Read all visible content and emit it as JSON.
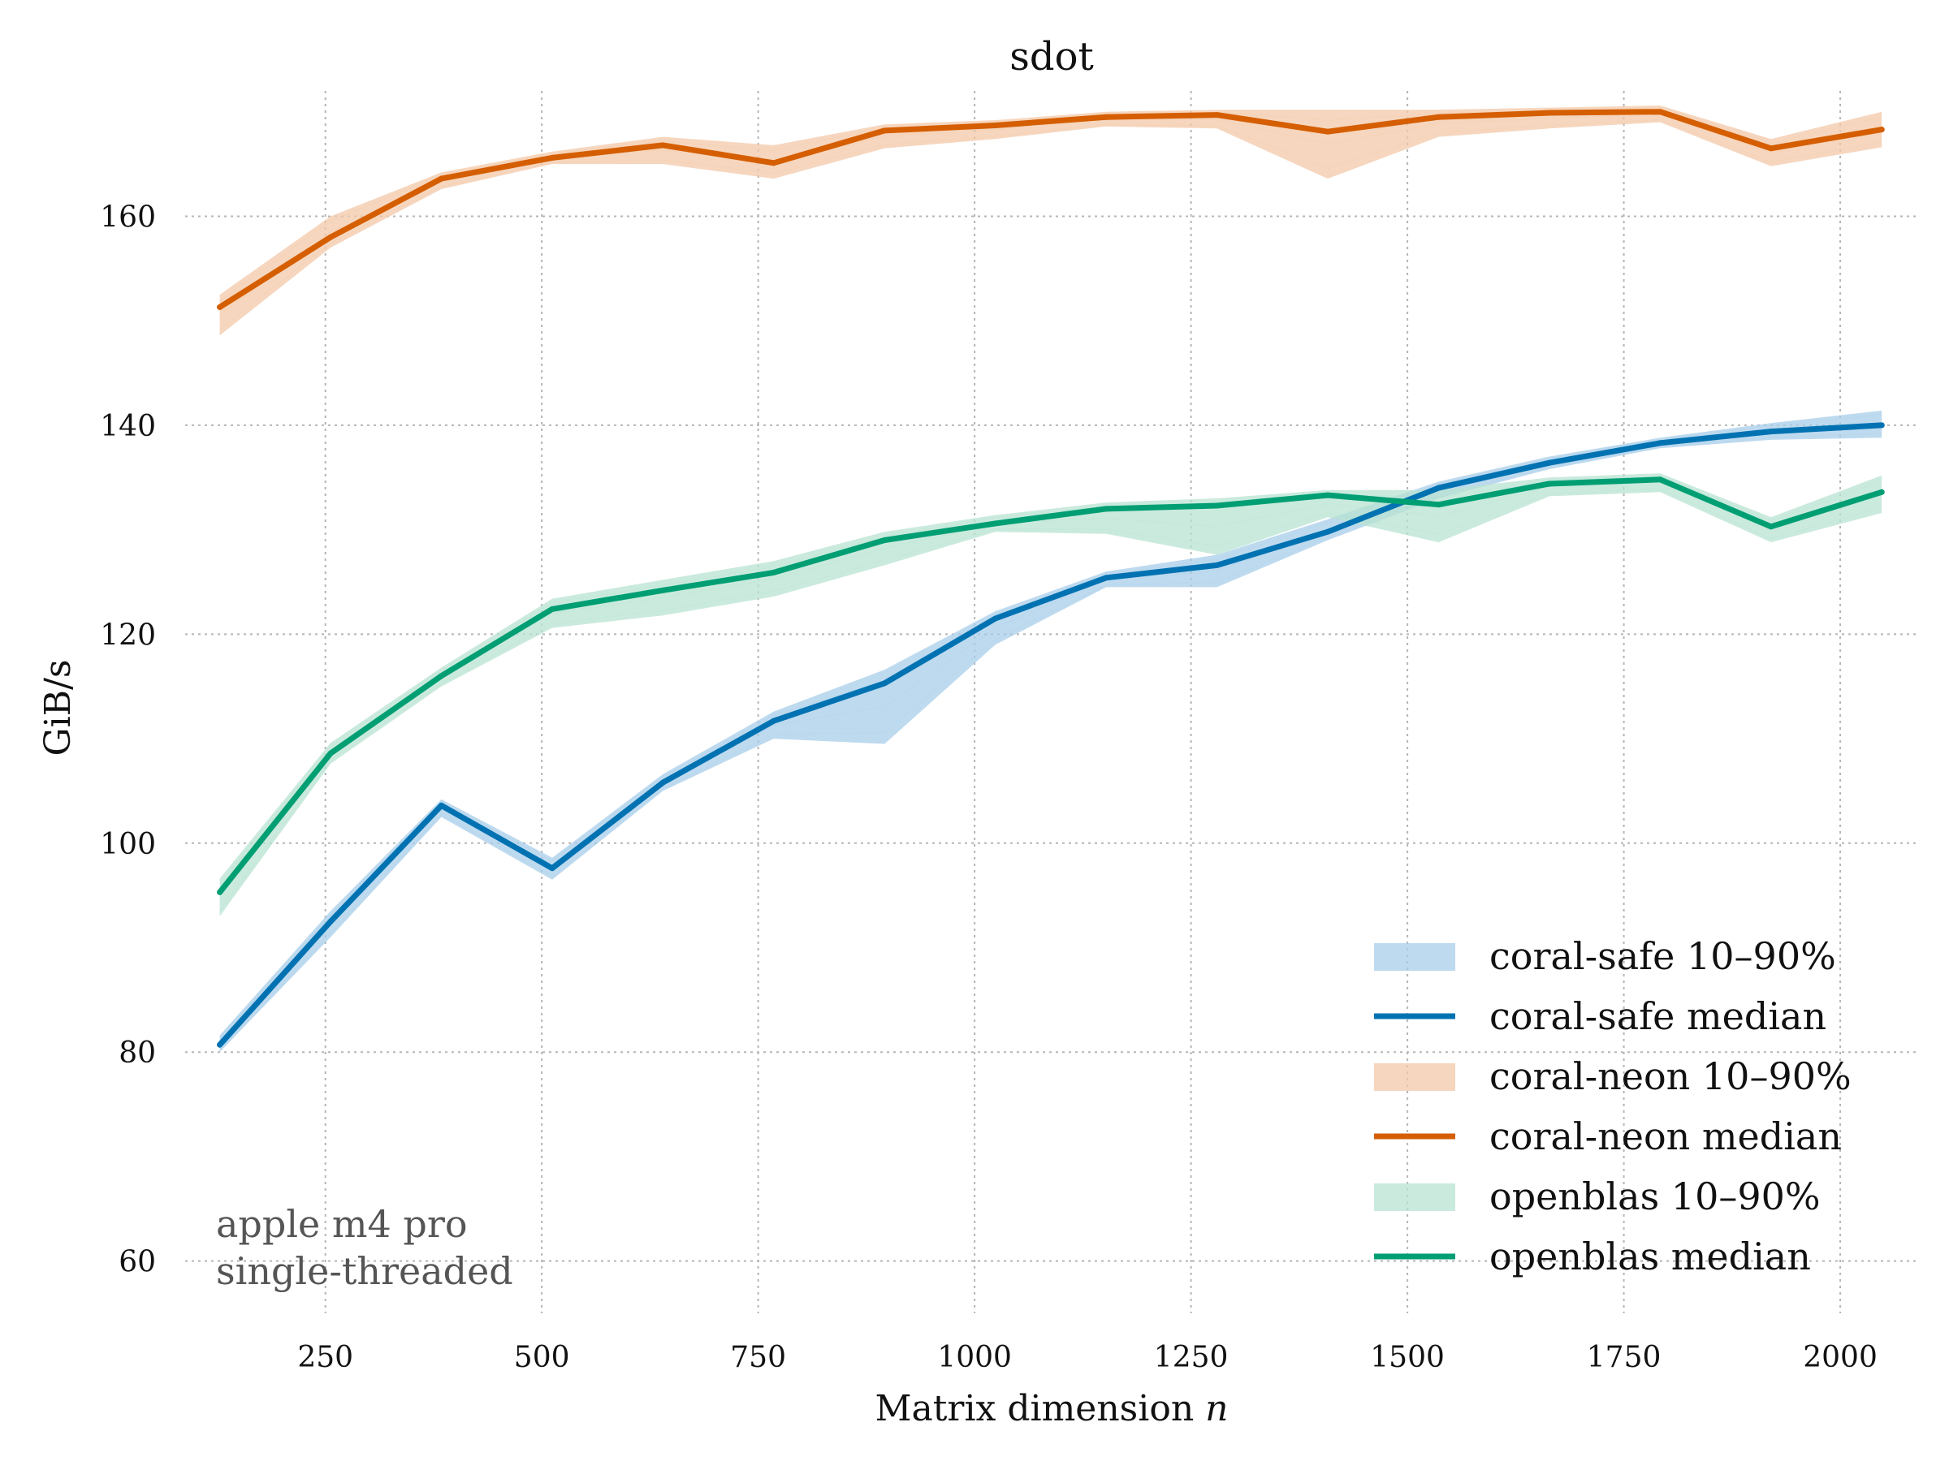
{
  "chart_data": {
    "type": "line",
    "title": "sdot",
    "xlabel": "Matrix dimension",
    "xlabel_var": "n",
    "ylabel": "GiB/s",
    "xlim": [
      88,
      2090
    ],
    "ylim": [
      55,
      172
    ],
    "xticks": [
      250,
      500,
      750,
      1000,
      1250,
      1500,
      1750,
      2000
    ],
    "yticks": [
      60,
      80,
      100,
      120,
      140,
      160
    ],
    "grid": true,
    "legend_position": "bottom-right",
    "x": [
      128,
      256,
      384,
      512,
      640,
      768,
      896,
      1024,
      1152,
      1280,
      1408,
      1536,
      1664,
      1792,
      1920,
      2048
    ],
    "series": [
      {
        "name": "coral-safe median",
        "band_name": "coral-safe 10–90%",
        "color": "#0072b2",
        "band_color": "#a8cde9",
        "median": [
          80.7,
          92.5,
          103.6,
          97.6,
          105.8,
          111.7,
          115.3,
          121.5,
          125.4,
          126.6,
          129.8,
          134.0,
          136.4,
          138.3,
          139.4,
          140.0
        ],
        "p10": [
          80.0,
          91.0,
          102.5,
          96.5,
          105.0,
          110.0,
          109.5,
          119.0,
          124.5,
          124.5,
          129.0,
          133.0,
          135.8,
          137.8,
          138.6,
          138.8
        ],
        "p90": [
          81.6,
          93.5,
          104.2,
          98.6,
          106.6,
          112.6,
          116.6,
          122.2,
          126.0,
          127.6,
          131.0,
          134.6,
          137.0,
          138.8,
          140.2,
          141.4
        ]
      },
      {
        "name": "coral-neon median",
        "band_name": "coral-neon 10–90%",
        "color": "#d55e00",
        "band_color": "#f3c8a8",
        "median": [
          151.3,
          158.0,
          163.6,
          165.6,
          166.8,
          165.1,
          168.2,
          168.7,
          169.5,
          169.7,
          168.1,
          169.5,
          169.9,
          170.0,
          166.5,
          168.3
        ],
        "p10": [
          148.6,
          157.0,
          162.6,
          165.0,
          165.0,
          163.6,
          166.5,
          167.4,
          168.6,
          168.4,
          163.6,
          167.6,
          168.4,
          169.0,
          164.8,
          166.6
        ],
        "p90": [
          152.5,
          160.0,
          164.2,
          166.2,
          167.6,
          166.8,
          168.8,
          169.2,
          170.0,
          170.2,
          170.2,
          170.2,
          170.4,
          170.6,
          167.4,
          170.0
        ]
      },
      {
        "name": "openblas median",
        "band_name": "openblas 10–90%",
        "color": "#009e73",
        "band_color": "#b8e3d2",
        "median": [
          95.3,
          108.6,
          116.0,
          122.4,
          124.2,
          125.9,
          129.0,
          130.6,
          132.0,
          132.3,
          133.3,
          132.4,
          134.4,
          134.8,
          130.3,
          133.6
        ],
        "p10": [
          93.0,
          107.6,
          115.0,
          120.6,
          121.8,
          123.6,
          126.6,
          129.8,
          129.6,
          127.6,
          131.2,
          128.8,
          133.2,
          133.6,
          128.8,
          131.6
        ],
        "p90": [
          96.6,
          109.6,
          116.8,
          123.4,
          125.2,
          127.0,
          129.8,
          131.4,
          132.6,
          133.0,
          133.8,
          133.8,
          135.0,
          135.4,
          131.2,
          135.2
        ]
      }
    ],
    "annotation": [
      "apple m4 pro",
      "single-threaded"
    ]
  }
}
